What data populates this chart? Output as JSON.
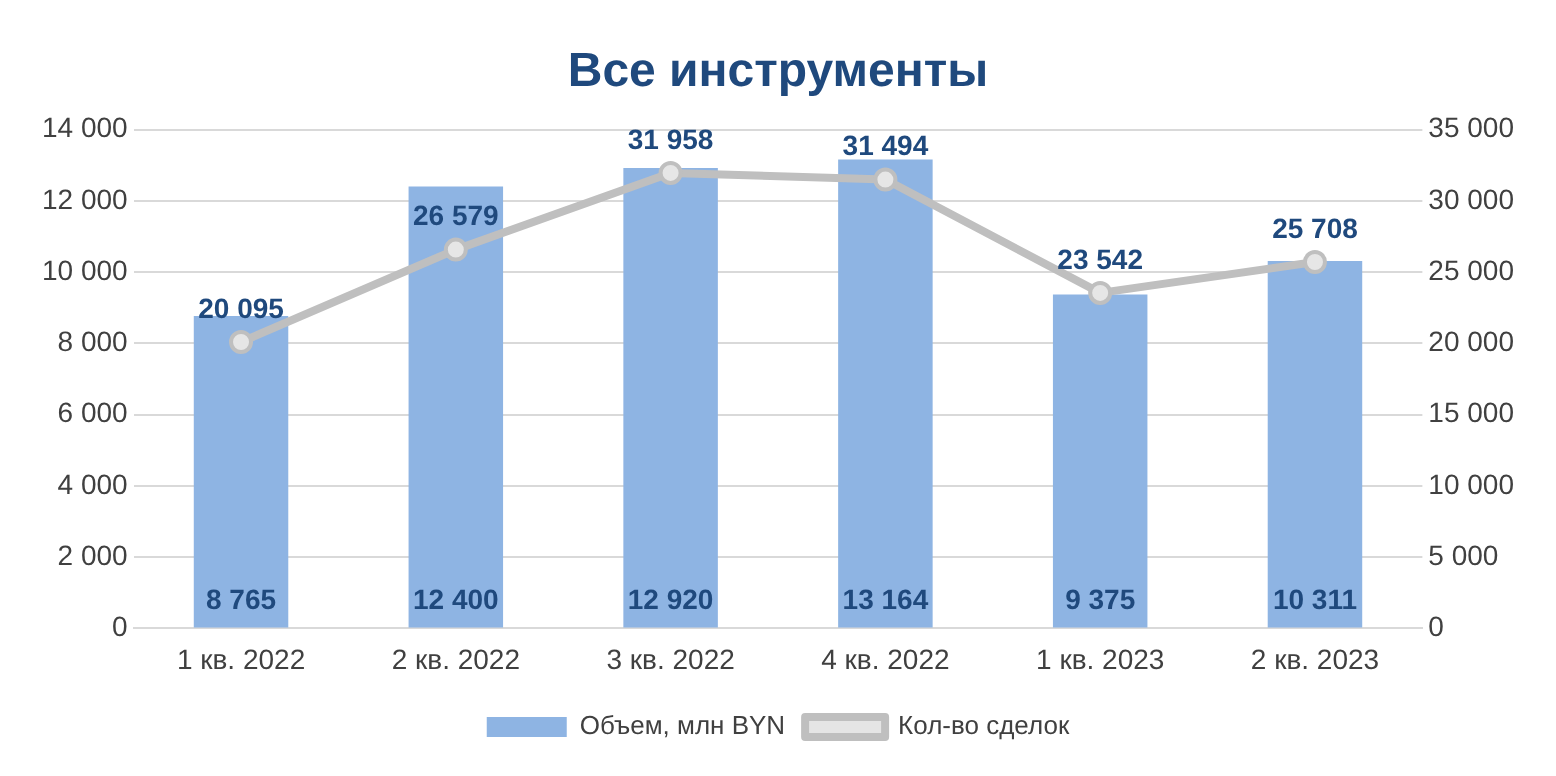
{
  "chart_data": {
    "type": "bar",
    "title": "Все инструменты",
    "categories": [
      "1 кв. 2022",
      "2 кв. 2022",
      "3 кв. 2022",
      "4 кв. 2022",
      "1 кв. 2023",
      "2 кв. 2023"
    ],
    "series": [
      {
        "name": "Объем, млн BYN",
        "color": "#8eb4e3",
        "values": [
          8765,
          12400,
          12920,
          13164,
          9375,
          10311
        ],
        "value_labels": [
          "8 765",
          "12 400",
          "12 920",
          "13 164",
          "9 375",
          "10 311"
        ]
      },
      {
        "name": "Кол-во сделок",
        "type": "line",
        "axis": "y2",
        "color": "#bfbfbf",
        "marker": "circle",
        "line_style": "solid",
        "values": [
          20095,
          26579,
          31958,
          31494,
          23542,
          25708
        ],
        "value_labels": [
          "20 095",
          "26 579",
          "31 958",
          "31 494",
          "23 542",
          "25 708"
        ]
      }
    ],
    "ylim": [
      0,
      14000
    ],
    "yticks": [
      0,
      {
        "value": 2000,
        "label": "2 000"
      },
      {
        "value": 4000,
        "label": "4 000"
      },
      {
        "value": 6000,
        "label": "6 000"
      },
      {
        "value": 8000,
        "label": "8 000"
      },
      {
        "value": 10000,
        "label": "10 000"
      },
      {
        "value": 12000,
        "label": "12 000"
      },
      {
        "value": 14000,
        "label": "14 000"
      }
    ],
    "y2lim": [
      0,
      35000
    ],
    "y2ticks": [
      0,
      {
        "value": 5000,
        "label": "5 000"
      },
      {
        "value": 10000,
        "label": "10 000"
      },
      {
        "value": 15000,
        "label": "15 000"
      },
      {
        "value": 20000,
        "label": "20 000"
      },
      {
        "value": 25000,
        "label": "25 000"
      },
      {
        "value": 30000,
        "label": "30 000"
      },
      {
        "value": 35000,
        "label": "35 000"
      }
    ],
    "grid": "y",
    "legend": "bottom"
  }
}
